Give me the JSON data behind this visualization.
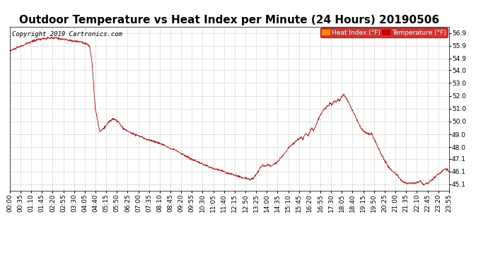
{
  "title": "Outdoor Temperature vs Heat Index per Minute (24 Hours) 20190506",
  "copyright": "Copyright 2019 Cartronics.com",
  "legend_heat_label": "Heat Index (°F)",
  "legend_temp_label": "Temperature (°F)",
  "legend_heat_color": "#ff8800",
  "legend_temp_color": "#cc0000",
  "line_color": "#cc0000",
  "ylim": [
    44.6,
    57.4
  ],
  "yticks": [
    45.1,
    46.1,
    47.1,
    48.0,
    49.0,
    50.0,
    51.0,
    52.0,
    53.0,
    54.0,
    54.9,
    55.9,
    56.9
  ],
  "xtick_labels": [
    "00:00",
    "00:35",
    "01:10",
    "01:45",
    "02:20",
    "02:55",
    "03:30",
    "04:05",
    "04:40",
    "05:15",
    "05:50",
    "06:25",
    "07:00",
    "07:35",
    "08:10",
    "08:45",
    "09:20",
    "09:55",
    "10:30",
    "11:05",
    "11:40",
    "12:15",
    "12:50",
    "13:25",
    "14:00",
    "14:35",
    "15:10",
    "15:45",
    "16:20",
    "16:55",
    "17:30",
    "18:05",
    "18:40",
    "19:15",
    "19:50",
    "20:25",
    "21:00",
    "21:35",
    "22:10",
    "22:45",
    "23:20",
    "23:55"
  ],
  "grid_color": "#bbbbbb",
  "bg_color": "#ffffff",
  "title_fontsize": 11,
  "copyright_fontsize": 6.5,
  "tick_fontsize": 6.5,
  "keypoints": [
    [
      0,
      55.5
    ],
    [
      30,
      55.8
    ],
    [
      90,
      56.4
    ],
    [
      130,
      56.5
    ],
    [
      155,
      56.5
    ],
    [
      200,
      56.3
    ],
    [
      235,
      56.2
    ],
    [
      255,
      56.0
    ],
    [
      262,
      55.8
    ],
    [
      270,
      54.5
    ],
    [
      280,
      51.0
    ],
    [
      295,
      49.2
    ],
    [
      310,
      49.5
    ],
    [
      325,
      50.0
    ],
    [
      340,
      50.2
    ],
    [
      355,
      50.0
    ],
    [
      370,
      49.5
    ],
    [
      390,
      49.2
    ],
    [
      410,
      49.0
    ],
    [
      430,
      48.8
    ],
    [
      450,
      48.6
    ],
    [
      480,
      48.4
    ],
    [
      510,
      48.1
    ],
    [
      540,
      47.8
    ],
    [
      570,
      47.4
    ],
    [
      600,
      47.0
    ],
    [
      630,
      46.7
    ],
    [
      660,
      46.4
    ],
    [
      690,
      46.2
    ],
    [
      710,
      46.0
    ],
    [
      730,
      45.9
    ],
    [
      750,
      45.7
    ],
    [
      770,
      45.6
    ],
    [
      790,
      45.5
    ],
    [
      800,
      45.6
    ],
    [
      810,
      46.0
    ],
    [
      820,
      46.4
    ],
    [
      830,
      46.6
    ],
    [
      840,
      46.5
    ],
    [
      845,
      46.7
    ],
    [
      855,
      46.5
    ],
    [
      865,
      46.7
    ],
    [
      875,
      46.8
    ],
    [
      885,
      47.1
    ],
    [
      900,
      47.5
    ],
    [
      915,
      48.0
    ],
    [
      930,
      48.3
    ],
    [
      945,
      48.6
    ],
    [
      955,
      48.8
    ],
    [
      960,
      48.6
    ],
    [
      965,
      48.9
    ],
    [
      970,
      49.1
    ],
    [
      975,
      48.9
    ],
    [
      980,
      49.0
    ],
    [
      985,
      49.3
    ],
    [
      990,
      49.5
    ],
    [
      995,
      49.3
    ],
    [
      1000,
      49.5
    ],
    [
      1005,
      49.8
    ],
    [
      1010,
      50.1
    ],
    [
      1015,
      50.4
    ],
    [
      1020,
      50.6
    ],
    [
      1025,
      50.8
    ],
    [
      1030,
      51.0
    ],
    [
      1035,
      51.1
    ],
    [
      1040,
      51.2
    ],
    [
      1045,
      51.3
    ],
    [
      1050,
      51.4
    ],
    [
      1055,
      51.3
    ],
    [
      1060,
      51.5
    ],
    [
      1065,
      51.6
    ],
    [
      1070,
      51.5
    ],
    [
      1075,
      51.7
    ],
    [
      1080,
      51.6
    ],
    [
      1085,
      51.8
    ],
    [
      1090,
      52.0
    ],
    [
      1095,
      52.1
    ],
    [
      1100,
      51.9
    ],
    [
      1110,
      51.5
    ],
    [
      1120,
      51.0
    ],
    [
      1130,
      50.5
    ],
    [
      1140,
      50.0
    ],
    [
      1150,
      49.5
    ],
    [
      1160,
      49.2
    ],
    [
      1170,
      49.1
    ],
    [
      1180,
      49.0
    ],
    [
      1185,
      49.1
    ],
    [
      1190,
      48.8
    ],
    [
      1200,
      48.3
    ],
    [
      1210,
      47.8
    ],
    [
      1220,
      47.3
    ],
    [
      1230,
      46.9
    ],
    [
      1240,
      46.5
    ],
    [
      1250,
      46.2
    ],
    [
      1260,
      46.0
    ],
    [
      1270,
      45.8
    ],
    [
      1280,
      45.5
    ],
    [
      1290,
      45.3
    ],
    [
      1300,
      45.2
    ],
    [
      1310,
      45.2
    ],
    [
      1315,
      45.2
    ],
    [
      1320,
      45.2
    ],
    [
      1325,
      45.2
    ],
    [
      1330,
      45.2
    ],
    [
      1340,
      45.3
    ],
    [
      1345,
      45.4
    ],
    [
      1350,
      45.2
    ],
    [
      1355,
      45.1
    ],
    [
      1360,
      45.1
    ],
    [
      1365,
      45.2
    ],
    [
      1370,
      45.2
    ],
    [
      1375,
      45.3
    ],
    [
      1380,
      45.4
    ],
    [
      1390,
      45.6
    ],
    [
      1400,
      45.8
    ],
    [
      1410,
      46.0
    ],
    [
      1420,
      46.2
    ],
    [
      1430,
      46.3
    ],
    [
      1439,
      46.1
    ]
  ]
}
